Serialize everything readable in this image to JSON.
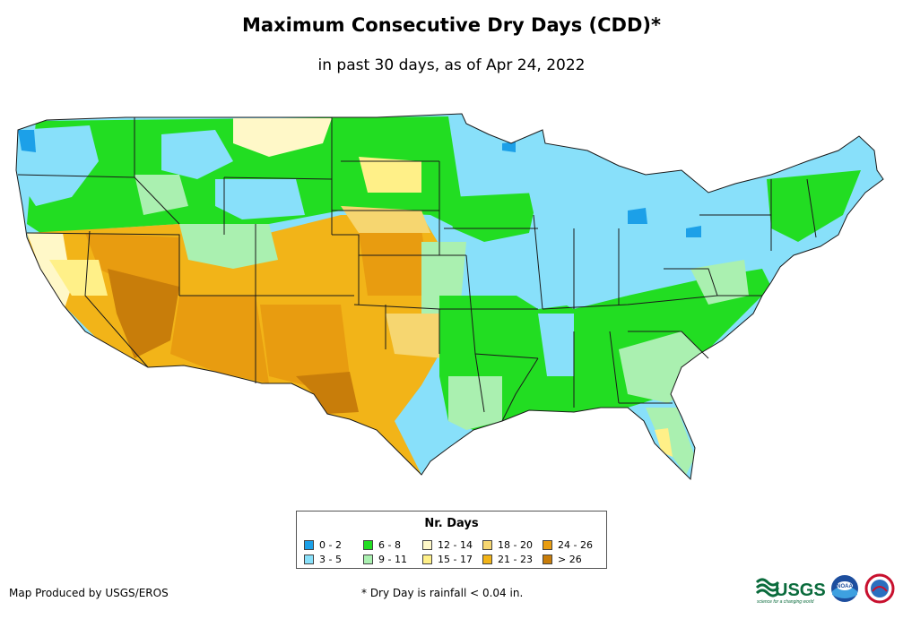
{
  "title": "Maximum Consecutive Dry Days (CDD)*",
  "subtitle": "in past 30 days, as of Apr 24, 2022",
  "legend": {
    "title": "Nr. Days",
    "items": [
      {
        "label": "0 - 2",
        "color": "#1ca0e8"
      },
      {
        "label": "3 - 5",
        "color": "#88e0fa"
      },
      {
        "label": "6 - 8",
        "color": "#22dd22"
      },
      {
        "label": "9 - 11",
        "color": "#aaf0b0"
      },
      {
        "label": "12 - 14",
        "color": "#fff8c8"
      },
      {
        "label": "15 - 17",
        "color": "#fff088"
      },
      {
        "label": "18 - 20",
        "color": "#f6d670"
      },
      {
        "label": "21 - 23",
        "color": "#f2b418"
      },
      {
        "label": "24 - 26",
        "color": "#e89c10"
      },
      {
        "label": "> 26",
        "color": "#c87d0a"
      }
    ]
  },
  "footer": {
    "producer": "Map Produced by USGS/EROS",
    "note": "* Dry Day is rainfall < 0.04 in."
  },
  "logos": {
    "usgs_text": "USGS",
    "usgs_tagline": "science for a changing world",
    "noaa_text": "NOAA"
  }
}
